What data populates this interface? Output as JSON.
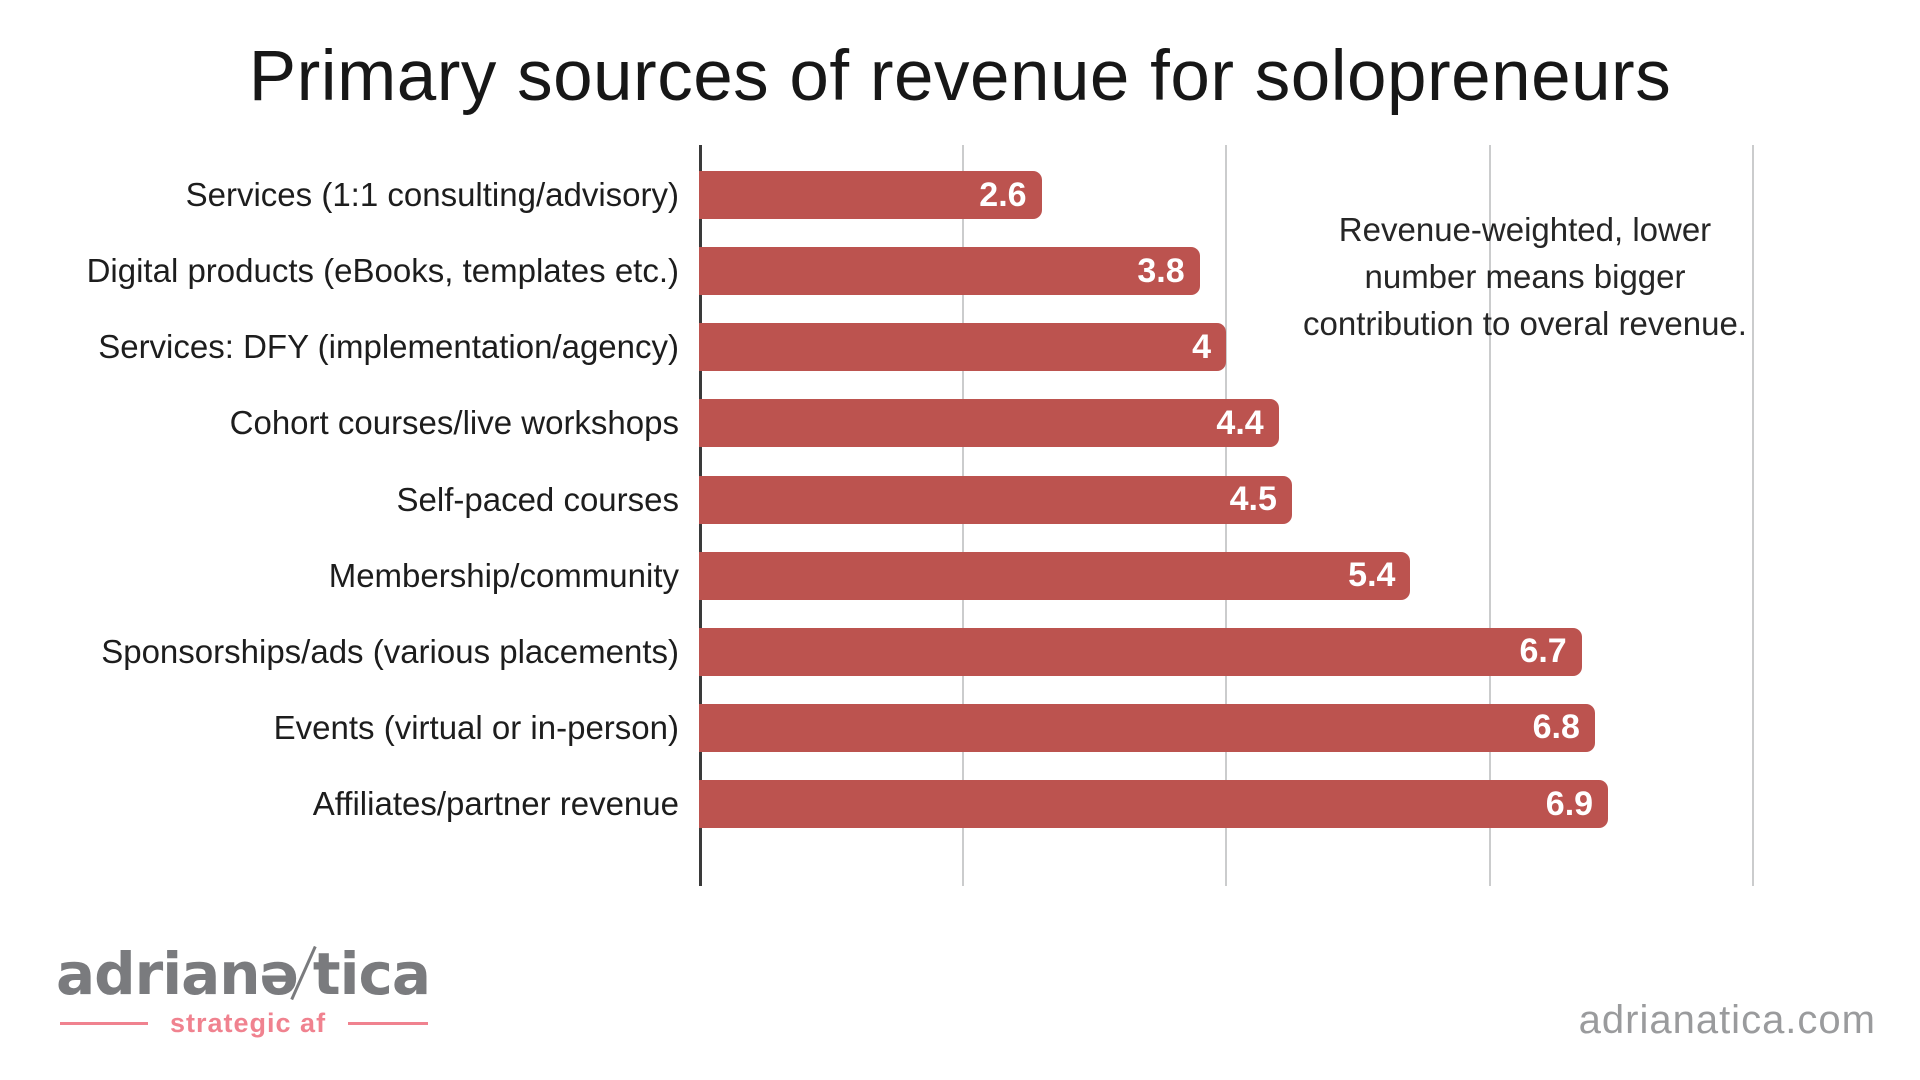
{
  "title": "Primary sources of revenue for solopreneurs",
  "annotation": {
    "full_text": "Revenue-weighted, lower number means bigger contribution to overal revenue.",
    "lines": [
      "Revenue-weighted, lower",
      "number means bigger",
      "contribution to overal revenue."
    ]
  },
  "chart_data": {
    "type": "bar",
    "orientation": "horizontal",
    "title": "Primary sources of revenue for solopreneurs",
    "categories": [
      "Services (1:1 consulting/advisory)",
      "Digital products (eBooks, templates etc.)",
      "Services: DFY (implementation/agency)",
      "Cohort courses/live workshops",
      "Self-paced courses",
      "Membership/community",
      "Sponsorships/ads (various placements)",
      "Events (virtual or in-person)",
      "Affiliates/partner revenue"
    ],
    "values": [
      2.6,
      3.8,
      4,
      4.4,
      4.5,
      5.4,
      6.7,
      6.8,
      6.9
    ],
    "value_labels": [
      "2.6",
      "3.8",
      "4",
      "4.4",
      "4.5",
      "5.4",
      "6.7",
      "6.8",
      "6.9"
    ],
    "xlabel": "",
    "ylabel": "",
    "xlim": [
      0,
      8
    ],
    "x_gridlines": [
      2,
      4,
      6,
      8
    ],
    "grid": "vertical gridlines only, no tick labels",
    "legend": "none",
    "bar_color": "#bc534f",
    "value_label_color": "#ffffff",
    "annotation": "Revenue-weighted, lower number means bigger contribution to overal revenue."
  },
  "footer": {
    "logo": {
      "wordmark_left": "adrianə",
      "wordmark_right": "tica",
      "wordmark_full": "adrianatica",
      "tagline": "strategic af"
    },
    "website": "adrianatica.com"
  },
  "colors": {
    "background": "#ffffff",
    "bar": "#bc534f",
    "axis_line": "#3a3a3a",
    "gridline": "#cbcccd",
    "text": "#1d1d1d",
    "logo_gray": "#7a7b7e",
    "logo_pink": "#f0828f",
    "website_gray": "#9a9b9d"
  }
}
